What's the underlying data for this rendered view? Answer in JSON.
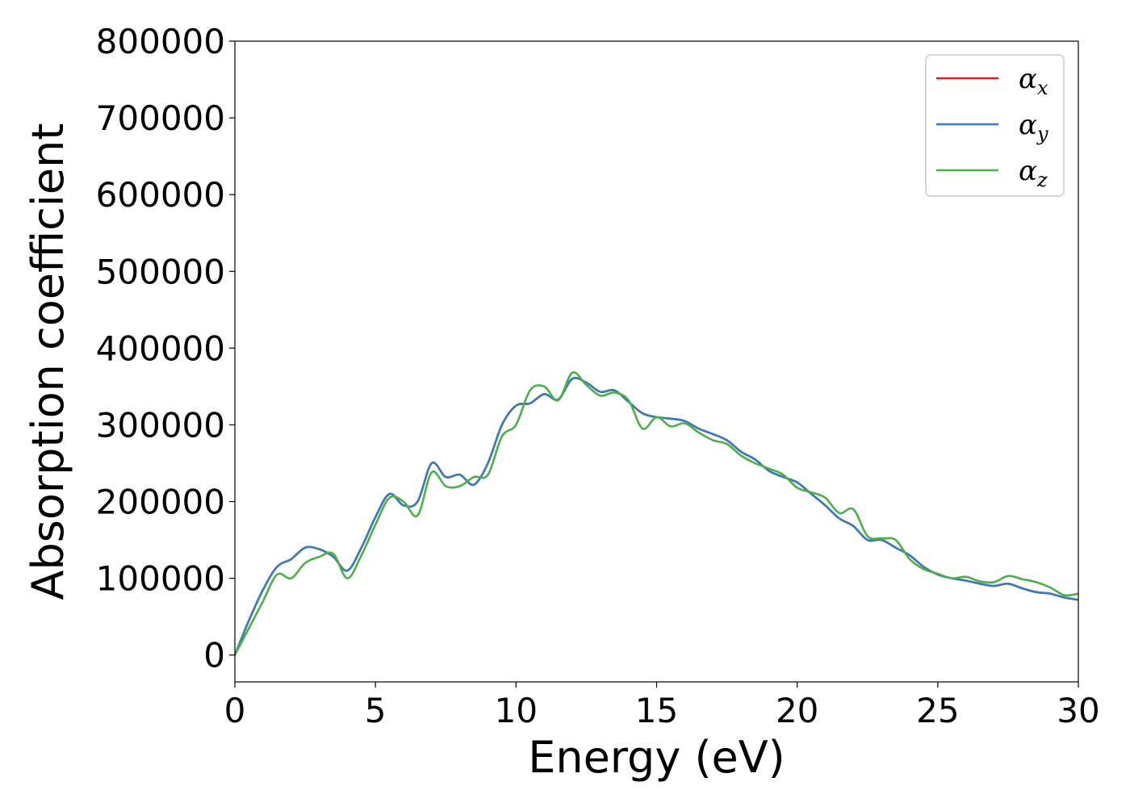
{
  "chart_data": {
    "type": "line",
    "xlabel": "Energy (eV)",
    "ylabel": "Absorption coefficient",
    "xlim": [
      0,
      30
    ],
    "ylim": [
      -35000,
      800000
    ],
    "xticks": [
      0,
      5,
      10,
      15,
      20,
      25,
      30
    ],
    "yticks": [
      0,
      100000,
      200000,
      300000,
      400000,
      500000,
      600000,
      700000,
      800000
    ],
    "grid": false,
    "legend_position": "top-right",
    "x": [
      0,
      0.5,
      1.0,
      1.5,
      2.0,
      2.5,
      3.0,
      3.5,
      4.0,
      4.5,
      5.0,
      5.5,
      6.0,
      6.5,
      7.0,
      7.5,
      8.0,
      8.5,
      9.0,
      9.5,
      10.0,
      10.5,
      11.0,
      11.5,
      12.0,
      12.5,
      13.0,
      13.5,
      14.0,
      14.5,
      15.0,
      15.5,
      16.0,
      16.5,
      17.0,
      17.5,
      18.0,
      18.5,
      19.0,
      19.5,
      20.0,
      20.5,
      21.0,
      21.5,
      22.0,
      22.5,
      23.0,
      23.5,
      24.0,
      24.5,
      25.0,
      25.5,
      26.0,
      26.5,
      27.0,
      27.5,
      28.0,
      28.5,
      29.0,
      29.5,
      30.0
    ],
    "series": [
      {
        "name": "α",
        "sub": "x",
        "color": "#e41a1c",
        "values": [
          0,
          45000,
          85000,
          115000,
          125000,
          140000,
          138000,
          128000,
          110000,
          140000,
          180000,
          210000,
          195000,
          200000,
          250000,
          232000,
          235000,
          222000,
          250000,
          300000,
          325000,
          328000,
          340000,
          333000,
          360000,
          355000,
          343000,
          345000,
          330000,
          315000,
          310000,
          308000,
          305000,
          295000,
          288000,
          280000,
          265000,
          255000,
          240000,
          232000,
          225000,
          210000,
          195000,
          178000,
          168000,
          150000,
          150000,
          140000,
          130000,
          115000,
          105000,
          100000,
          97000,
          93000,
          90000,
          93000,
          87000,
          82000,
          80000,
          75000,
          72000
        ]
      },
      {
        "name": "α",
        "sub": "y",
        "color": "#377eb8",
        "values": [
          0,
          45000,
          85000,
          115000,
          125000,
          140000,
          138000,
          128000,
          110000,
          140000,
          180000,
          210000,
          195000,
          200000,
          250000,
          232000,
          235000,
          222000,
          250000,
          300000,
          325000,
          328000,
          340000,
          333000,
          360000,
          355000,
          343000,
          345000,
          330000,
          315000,
          310000,
          308000,
          305000,
          295000,
          288000,
          280000,
          265000,
          255000,
          240000,
          232000,
          225000,
          210000,
          195000,
          178000,
          168000,
          150000,
          150000,
          140000,
          130000,
          115000,
          105000,
          100000,
          97000,
          93000,
          90000,
          93000,
          87000,
          82000,
          80000,
          75000,
          72000
        ]
      },
      {
        "name": "α",
        "sub": "z",
        "color": "#4daf4a",
        "values": [
          0,
          35000,
          70000,
          105000,
          100000,
          120000,
          128000,
          132000,
          100000,
          130000,
          170000,
          205000,
          200000,
          182000,
          238000,
          220000,
          220000,
          232000,
          235000,
          285000,
          300000,
          345000,
          350000,
          332000,
          368000,
          352000,
          338000,
          342000,
          332000,
          295000,
          310000,
          298000,
          302000,
          290000,
          280000,
          275000,
          260000,
          250000,
          243000,
          235000,
          218000,
          212000,
          205000,
          185000,
          190000,
          155000,
          152000,
          150000,
          125000,
          112000,
          106000,
          100000,
          102000,
          96000,
          95000,
          103000,
          99000,
          95000,
          88000,
          78000,
          80000
        ]
      }
    ]
  }
}
